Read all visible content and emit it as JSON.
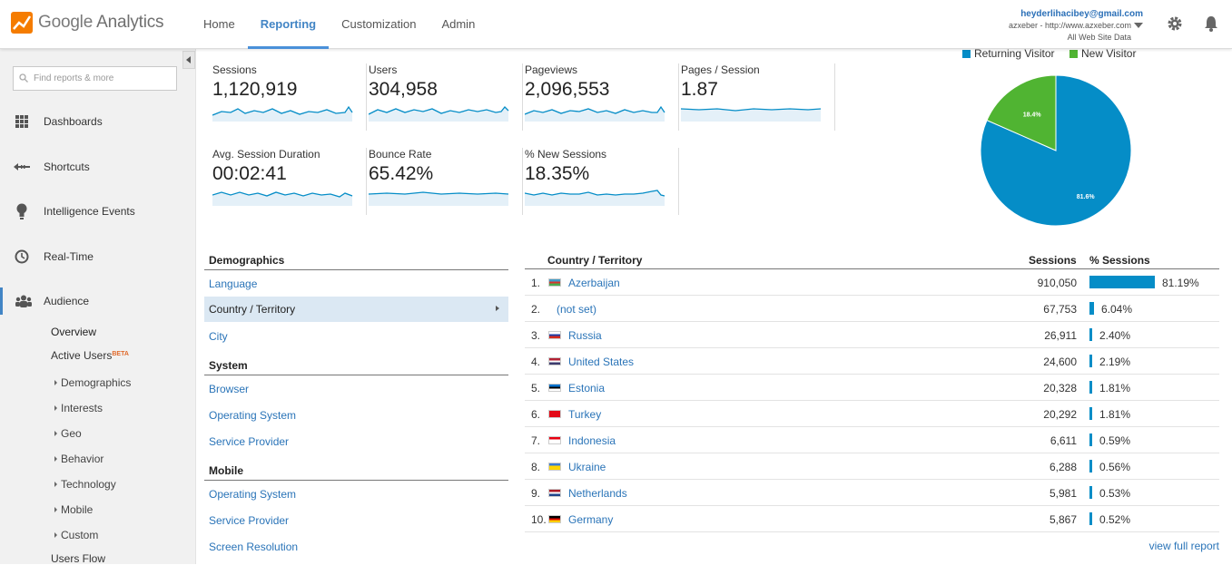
{
  "app": {
    "name_part1": "Google",
    "name_part2": "Analytics"
  },
  "nav": [
    "Home",
    "Reporting",
    "Customization",
    "Admin"
  ],
  "account": {
    "email": "heyderlihacibey@gmail.com",
    "property": "azxeber - http://www.azxeber.com",
    "view": "All Web Site Data"
  },
  "search": {
    "placeholder": "Find reports & more"
  },
  "sidebar": {
    "items": [
      {
        "label": "Dashboards",
        "icon": "grid-icon"
      },
      {
        "label": "Shortcuts",
        "icon": "shortcut-arrows-icon"
      },
      {
        "label": "Intelligence Events",
        "icon": "lightbulb-icon"
      },
      {
        "label": "Real-Time",
        "icon": "clock-icon"
      },
      {
        "label": "Audience",
        "icon": "people-icon"
      }
    ],
    "audience_sub": {
      "overview": "Overview",
      "active_users": "Active Users",
      "beta": "BETA",
      "groups": [
        "Demographics",
        "Interests",
        "Geo",
        "Behavior",
        "Technology",
        "Mobile",
        "Custom"
      ],
      "users_flow": "Users Flow"
    }
  },
  "metrics": [
    {
      "label": "Sessions",
      "value": "1,120,919"
    },
    {
      "label": "Users",
      "value": "304,958"
    },
    {
      "label": "Pageviews",
      "value": "2,096,553"
    },
    {
      "label": "Pages / Session",
      "value": "1.87"
    },
    {
      "label": "Avg. Session Duration",
      "value": "00:02:41"
    },
    {
      "label": "Bounce Rate",
      "value": "65.42%"
    },
    {
      "label": "% New Sessions",
      "value": "18.35%"
    }
  ],
  "colors": {
    "returning": "#058dc7",
    "new": "#50b432",
    "accent": "#4285c5",
    "link": "#2a74b8"
  },
  "chart_data": {
    "type": "pie",
    "series": [
      {
        "name": "Returning Visitor",
        "value": 81.6,
        "label": "81.6%"
      },
      {
        "name": "New Visitor",
        "value": 18.4,
        "label": "18.4%"
      }
    ],
    "legend": "top"
  },
  "dimensions": {
    "demographics": {
      "title": "Demographics",
      "items": [
        "Language",
        "Country / Territory",
        "City"
      ],
      "selected": "Country / Territory"
    },
    "system": {
      "title": "System",
      "items": [
        "Browser",
        "Operating System",
        "Service Provider"
      ]
    },
    "mobile": {
      "title": "Mobile",
      "items": [
        "Operating System",
        "Service Provider",
        "Screen Resolution"
      ]
    }
  },
  "table": {
    "headers": {
      "country": "Country / Territory",
      "sessions": "Sessions",
      "pct": "% Sessions"
    },
    "rows": [
      {
        "num": "1.",
        "country": "Azerbaijan",
        "sessions": "910,050",
        "pct": "81.19%",
        "share": 81.19,
        "flag": [
          "#3f9cc9",
          "#d8352c",
          "#4bab4e"
        ]
      },
      {
        "num": "2.",
        "country": "(not set)",
        "sessions": "67,753",
        "pct": "6.04%",
        "share": 6.04,
        "flag": null
      },
      {
        "num": "3.",
        "country": "Russia",
        "sessions": "26,911",
        "pct": "2.40%",
        "share": 2.4,
        "flag": [
          "#ffffff",
          "#1d3ea6",
          "#d52b1e"
        ]
      },
      {
        "num": "4.",
        "country": "United States",
        "sessions": "24,600",
        "pct": "2.19%",
        "share": 2.19,
        "flag": [
          "#b22234",
          "#ffffff",
          "#3c3b6e"
        ]
      },
      {
        "num": "5.",
        "country": "Estonia",
        "sessions": "20,328",
        "pct": "1.81%",
        "share": 1.81,
        "flag": [
          "#0072ce",
          "#000000",
          "#ffffff"
        ]
      },
      {
        "num": "6.",
        "country": "Turkey",
        "sessions": "20,292",
        "pct": "1.81%",
        "share": 1.81,
        "flag": [
          "#e30a17",
          "#e30a17",
          "#e30a17"
        ]
      },
      {
        "num": "7.",
        "country": "Indonesia",
        "sessions": "6,611",
        "pct": "0.59%",
        "share": 0.59,
        "flag": [
          "#e70011",
          "#ffffff",
          "#ffffff"
        ]
      },
      {
        "num": "8.",
        "country": "Ukraine",
        "sessions": "6,288",
        "pct": "0.56%",
        "share": 0.56,
        "flag": [
          "#3a7dd6",
          "#ffd500",
          "#ffd500"
        ]
      },
      {
        "num": "9.",
        "country": "Netherlands",
        "sessions": "5,981",
        "pct": "0.53%",
        "share": 0.53,
        "flag": [
          "#ae1c28",
          "#ffffff",
          "#21468b"
        ]
      },
      {
        "num": "10.",
        "country": "Germany",
        "sessions": "5,867",
        "pct": "0.52%",
        "share": 0.52,
        "flag": [
          "#000000",
          "#dd0000",
          "#ffce00"
        ]
      }
    ],
    "view_full": "view full report"
  }
}
